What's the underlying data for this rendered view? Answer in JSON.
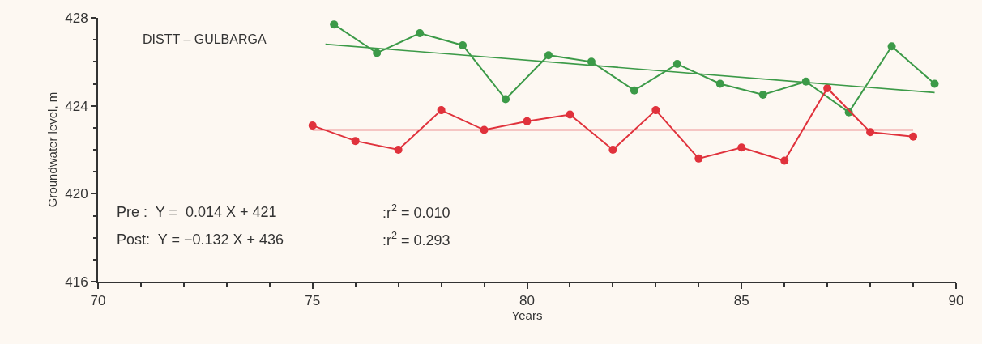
{
  "chart_data": {
    "type": "line",
    "title": "DISTT – GULBARGA",
    "xlabel": "Years",
    "ylabel": "Groundwater level, m",
    "series": [
      {
        "color": "#3c9a48",
        "marker": "circle",
        "x": [
          75.5,
          76.5,
          77.5,
          78.5,
          79.5,
          80.5,
          81.5,
          82.5,
          83.5,
          84.5,
          85.5,
          86.5,
          87.5,
          88.5,
          89.5
        ],
        "values": [
          427.7,
          426.4,
          427.3,
          426.75,
          424.3,
          426.3,
          426.0,
          424.7,
          425.9,
          425.0,
          424.5,
          425.1,
          423.7,
          426.7,
          425.0
        ]
      },
      {
        "color": "#e0323c",
        "marker": "circle",
        "x": [
          75,
          76,
          77,
          78,
          79,
          80,
          81,
          82,
          83,
          84,
          85,
          86,
          87,
          88,
          89
        ],
        "values": [
          423.1,
          422.4,
          422.0,
          423.8,
          422.9,
          423.3,
          423.6,
          422.0,
          423.8,
          421.6,
          422.1,
          421.5,
          424.8,
          422.8,
          422.6
        ]
      },
      {
        "color": "#3c9a48",
        "marker": "none",
        "x": [
          75.3,
          89.5
        ],
        "values": [
          426.8,
          424.6
        ]
      },
      {
        "color": "#e0323c",
        "marker": "none",
        "x": [
          75,
          89
        ],
        "values": [
          422.9,
          422.9
        ]
      }
    ],
    "annotations": [
      "Pre :  Y =  0.014 X + 421",
      ":r$^{2}$ = 0.010",
      "Post:  Y = −0.132 X + 436",
      ":r$^{2}$ = 0.293"
    ],
    "xlim": [
      70,
      90
    ],
    "xticks": [
      70,
      75,
      80,
      85,
      90
    ],
    "ylim": [
      416,
      428
    ],
    "yticks": [
      416,
      420,
      424,
      428
    ],
    "grid": false,
    "line_style": "solid"
  }
}
